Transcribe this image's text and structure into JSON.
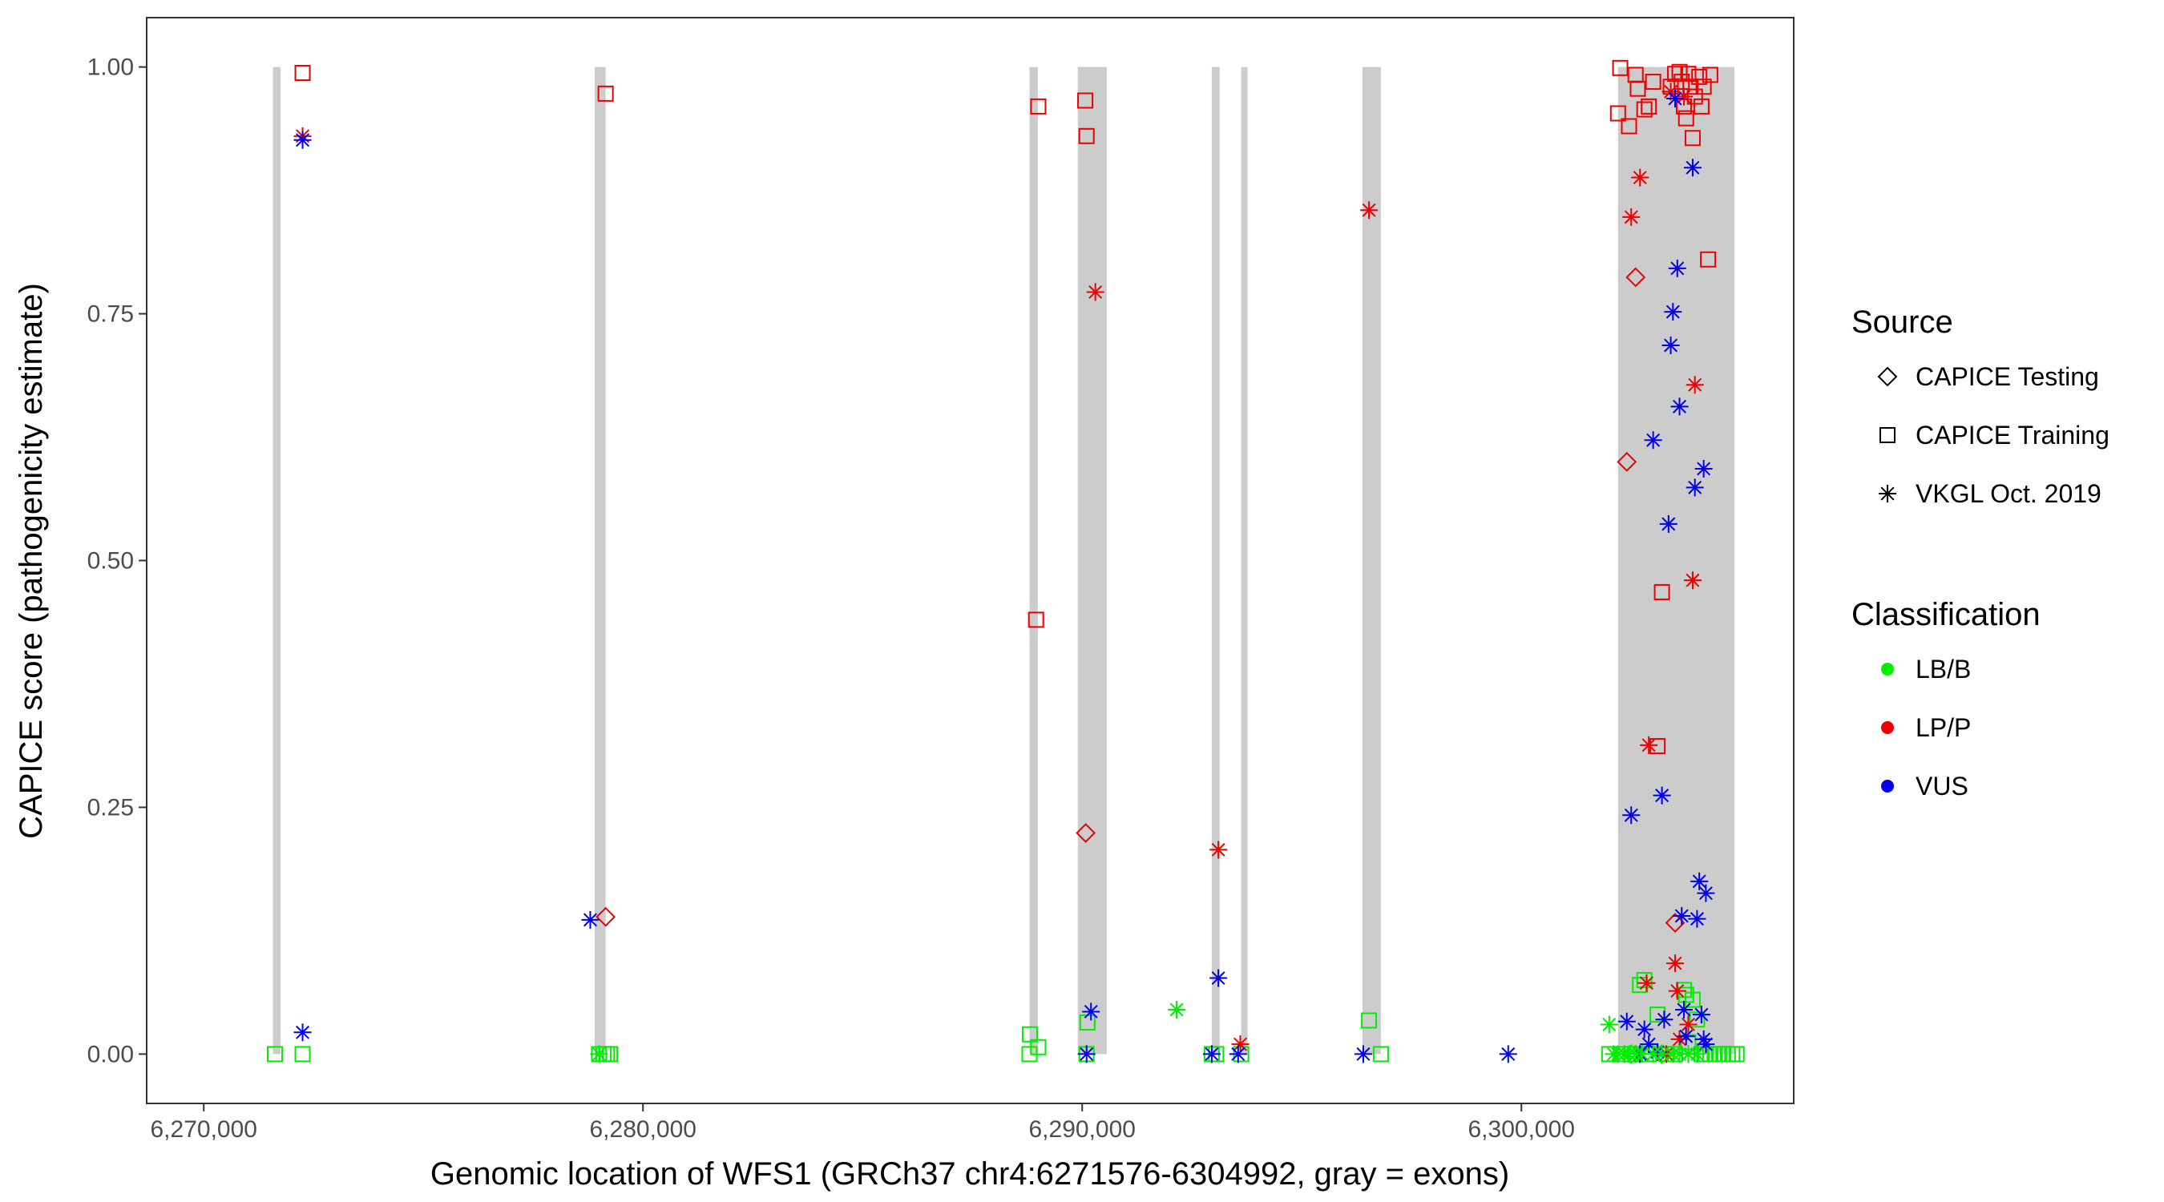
{
  "chart_data": {
    "type": "scatter",
    "title": "",
    "xlabel": "Genomic location of WFS1 (GRCh37 chr4:6271576-6304992, gray = exons)",
    "ylabel": "CAPICE score (pathogenicity estimate)",
    "xlim": [
      6268700,
      6306200
    ],
    "ylim": [
      -0.05,
      1.05
    ],
    "x_ticks": [
      6270000,
      6280000,
      6290000,
      6300000
    ],
    "x_tick_labels": [
      "6,270,000",
      "6,280,000",
      "6,290,000",
      "6,300,000"
    ],
    "y_ticks": [
      0,
      0.25,
      0.5,
      0.75,
      1
    ],
    "y_tick_labels": [
      "0.00",
      "0.25",
      "0.50",
      "0.75",
      "1.00"
    ],
    "grid": false,
    "exons": [
      [
        6271576,
        6271750
      ],
      [
        6278900,
        6279150
      ],
      [
        6288800,
        6288990
      ],
      [
        6289900,
        6290560
      ],
      [
        6292950,
        6293130
      ],
      [
        6293620,
        6293700
      ],
      [
        6296380,
        6296800
      ],
      [
        6302200,
        6304850
      ]
    ],
    "colors": {
      "LB/B": "#00ee00",
      "LP/P": "#ee0000",
      "VUS": "#0000ee"
    },
    "legend": {
      "source_title": "Source",
      "source_items": [
        {
          "label": "CAPICE Testing",
          "shape": "diamond"
        },
        {
          "label": "CAPICE Training",
          "shape": "square"
        },
        {
          "label": "VKGL Oct. 2019",
          "shape": "star"
        }
      ],
      "class_title": "Classification",
      "class_items": [
        {
          "label": "LB/B",
          "color": "#00ee00"
        },
        {
          "label": "LP/P",
          "color": "#ee0000"
        },
        {
          "label": "VUS",
          "color": "#0000ee"
        }
      ],
      "position": "right"
    },
    "series": [
      {
        "name": "CAPICE Training / LB/B",
        "source": "CAPICE Training",
        "class": "LB/B",
        "points": [
          [
            6271620,
            0.0
          ],
          [
            6272250,
            0.0
          ],
          [
            6279000,
            0.0
          ],
          [
            6279100,
            0.0
          ],
          [
            6279180,
            0.0
          ],
          [
            6279250,
            0.0
          ],
          [
            6288800,
            0.0
          ],
          [
            6288810,
            0.02
          ],
          [
            6289000,
            0.007
          ],
          [
            6290100,
            0.0
          ],
          [
            6290120,
            0.032
          ],
          [
            6292950,
            0.0
          ],
          [
            6293050,
            0.0
          ],
          [
            6293620,
            0.0
          ],
          [
            6296530,
            0.034
          ],
          [
            6296800,
            0.0
          ],
          [
            6302000,
            0.0
          ],
          [
            6302300,
            0.0
          ],
          [
            6302500,
            0.0
          ],
          [
            6302700,
            0.07
          ],
          [
            6302800,
            0.075
          ],
          [
            6302900,
            0.0
          ],
          [
            6303100,
            0.04
          ],
          [
            6303300,
            0.0
          ],
          [
            6303500,
            0.0
          ],
          [
            6303700,
            0.065
          ],
          [
            6303750,
            0.06
          ],
          [
            6303800,
            0.012
          ],
          [
            6303900,
            0.055
          ],
          [
            6304000,
            0.035
          ],
          [
            6304100,
            0.0
          ],
          [
            6304200,
            0.0
          ],
          [
            6304300,
            0.0
          ],
          [
            6304400,
            0.0
          ],
          [
            6304500,
            0.0
          ],
          [
            6304600,
            0.0
          ],
          [
            6304700,
            0.0
          ],
          [
            6304800,
            0.0
          ],
          [
            6304900,
            0.0
          ]
        ]
      },
      {
        "name": "CAPICE Training / LP/P",
        "source": "CAPICE Training",
        "class": "LP/P",
        "points": [
          [
            6272250,
            0.994
          ],
          [
            6279150,
            0.973
          ],
          [
            6288950,
            0.44
          ],
          [
            6289000,
            0.96
          ],
          [
            6290070,
            0.966
          ],
          [
            6290100,
            0.93
          ],
          [
            6302250,
            0.999
          ],
          [
            6302200,
            0.953
          ],
          [
            6302450,
            0.94
          ],
          [
            6302600,
            0.992
          ],
          [
            6302650,
            0.978
          ],
          [
            6302800,
            0.957
          ],
          [
            6302900,
            0.96
          ],
          [
            6303000,
            0.985
          ],
          [
            6303100,
            0.312
          ],
          [
            6303200,
            0.468
          ],
          [
            6303400,
            0.98
          ],
          [
            6303500,
            0.993
          ],
          [
            6303600,
            0.995
          ],
          [
            6303650,
            0.985
          ],
          [
            6303700,
            0.96
          ],
          [
            6303750,
            0.948
          ],
          [
            6303800,
            0.993
          ],
          [
            6303850,
            0.98
          ],
          [
            6303900,
            0.928
          ],
          [
            6303950,
            0.97
          ],
          [
            6304050,
            0.99
          ],
          [
            6304100,
            0.96
          ],
          [
            6304150,
            0.98
          ],
          [
            6304250,
            0.805
          ],
          [
            6304300,
            0.992
          ]
        ]
      },
      {
        "name": "CAPICE Testing / LP/P",
        "source": "CAPICE Testing",
        "class": "LP/P",
        "points": [
          [
            6279150,
            0.139
          ],
          [
            6290080,
            0.224
          ],
          [
            6302400,
            0.6
          ],
          [
            6302600,
            0.787
          ],
          [
            6303500,
            0.133
          ]
        ]
      },
      {
        "name": "CAPICE Testing / LB/B",
        "source": "CAPICE Testing",
        "class": "LB/B",
        "points": [
          [
            6302500,
            0.0
          ],
          [
            6303200,
            0.0
          ]
        ]
      },
      {
        "name": "VKGL Oct. 2019 / LP/P",
        "source": "VKGL Oct. 2019",
        "class": "LP/P",
        "points": [
          [
            6272250,
            0.93
          ],
          [
            6290300,
            0.772
          ],
          [
            6293100,
            0.207
          ],
          [
            6293600,
            0.01
          ],
          [
            6296530,
            0.855
          ],
          [
            6302500,
            0.848
          ],
          [
            6302700,
            0.888
          ],
          [
            6302900,
            0.313
          ],
          [
            6302850,
            0.072
          ],
          [
            6303300,
            0.0
          ],
          [
            6303500,
            0.092
          ],
          [
            6303550,
            0.064
          ],
          [
            6303600,
            0.015
          ],
          [
            6303700,
            0.97
          ],
          [
            6303900,
            0.48
          ],
          [
            6303950,
            0.678
          ],
          [
            6303800,
            0.03
          ],
          [
            6303400,
            0.975
          ]
        ]
      },
      {
        "name": "VKGL Oct. 2019 / VUS",
        "source": "VKGL Oct. 2019",
        "class": "VUS",
        "points": [
          [
            6272250,
            0.926
          ],
          [
            6272250,
            0.022
          ],
          [
            6278800,
            0.136
          ],
          [
            6290100,
            0.0
          ],
          [
            6290200,
            0.043
          ],
          [
            6292950,
            0.0
          ],
          [
            6293100,
            0.077
          ],
          [
            6293550,
            0.0
          ],
          [
            6296400,
            0.0
          ],
          [
            6299700,
            0.0
          ],
          [
            6302500,
            0.242
          ],
          [
            6302400,
            0.033
          ],
          [
            6302600,
            0.0
          ],
          [
            6302700,
            0.0
          ],
          [
            6302800,
            0.025
          ],
          [
            6302900,
            0.01
          ],
          [
            6303000,
            0.622
          ],
          [
            6303100,
            0.002
          ],
          [
            6303200,
            0.262
          ],
          [
            6303250,
            0.035
          ],
          [
            6303350,
            0.537
          ],
          [
            6303400,
            0.718
          ],
          [
            6303450,
            0.752
          ],
          [
            6303500,
            0.968
          ],
          [
            6303550,
            0.796
          ],
          [
            6303600,
            0.656
          ],
          [
            6303650,
            0.14
          ],
          [
            6303700,
            0.045
          ],
          [
            6303750,
            0.018
          ],
          [
            6303800,
            0.0
          ],
          [
            6303900,
            0.898
          ],
          [
            6303950,
            0.574
          ],
          [
            6304000,
            0.137
          ],
          [
            6304050,
            0.175
          ],
          [
            6304150,
            0.593
          ],
          [
            6304200,
            0.163
          ],
          [
            6304100,
            0.04
          ],
          [
            6304150,
            0.015
          ],
          [
            6304200,
            0.01
          ]
        ]
      },
      {
        "name": "VKGL Oct. 2019 / LB/B",
        "source": "VKGL Oct. 2019",
        "class": "LB/B",
        "points": [
          [
            6279000,
            0.0
          ],
          [
            6292150,
            0.045
          ],
          [
            6302000,
            0.03
          ],
          [
            6302100,
            0.0
          ],
          [
            6302200,
            0.0
          ],
          [
            6302350,
            0.0
          ],
          [
            6302450,
            0.0
          ],
          [
            6302600,
            0.0
          ],
          [
            6302750,
            0.0
          ],
          [
            6303000,
            0.0
          ],
          [
            6303200,
            0.0
          ],
          [
            6303450,
            0.0
          ],
          [
            6303600,
            0.0
          ],
          [
            6303800,
            0.0
          ],
          [
            6304000,
            0.0
          ]
        ]
      }
    ]
  }
}
